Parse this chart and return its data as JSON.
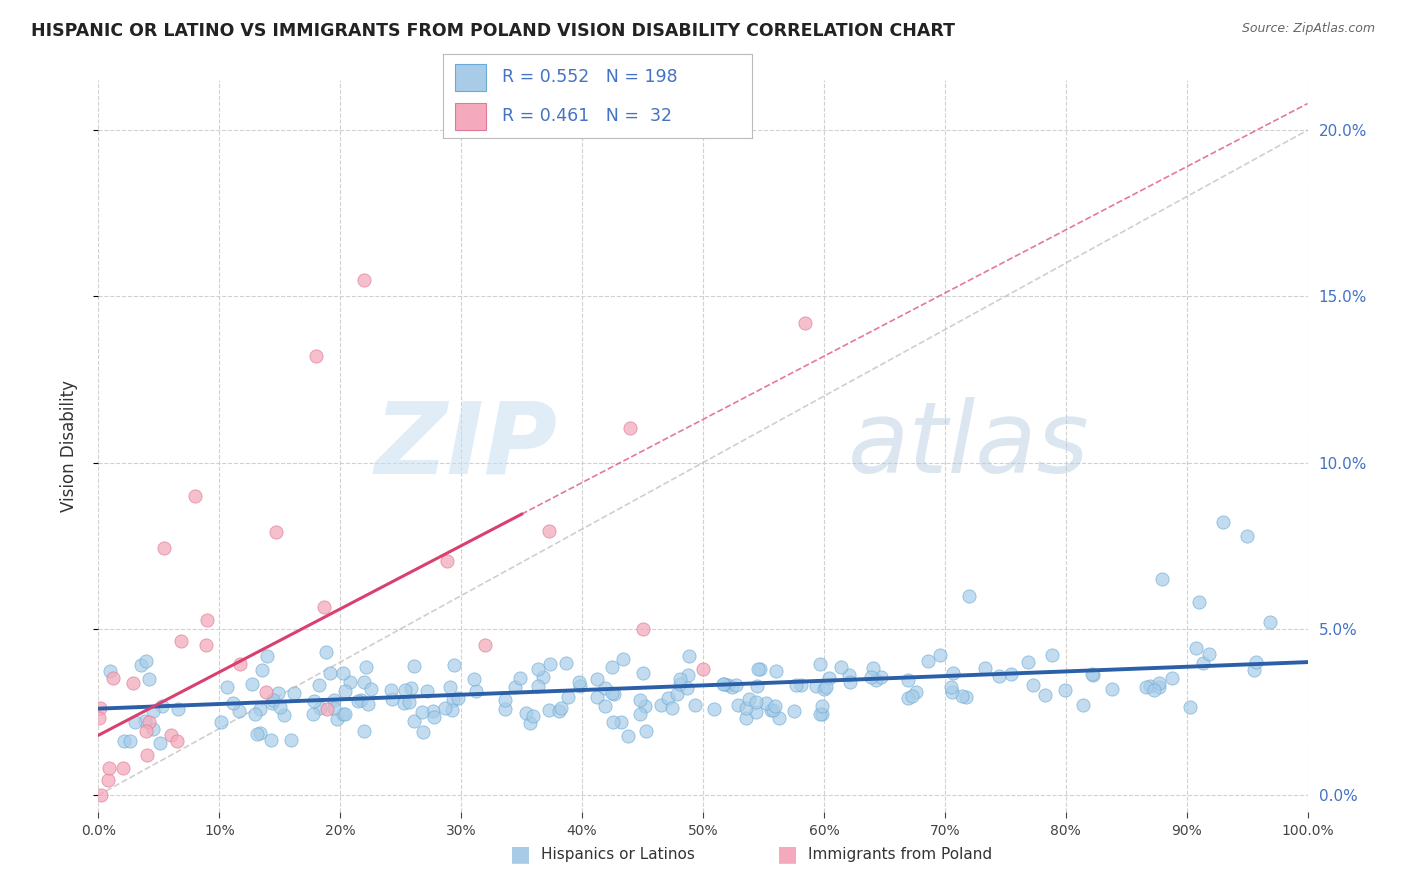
{
  "title": "HISPANIC OR LATINO VS IMMIGRANTS FROM POLAND VISION DISABILITY CORRELATION CHART",
  "source": "Source: ZipAtlas.com",
  "ylabel": "Vision Disability",
  "series1_label": "Hispanics or Latinos",
  "series2_label": "Immigrants from Poland",
  "series1_color": "#A8CCE8",
  "series1_edge": "#6AAAD4",
  "series2_color": "#F4AABC",
  "series2_edge": "#E07898",
  "trend1_color": "#2B5FA8",
  "trend2_color": "#D94070",
  "legend_text_color": "#4472C4",
  "grid_color": "#CCCCCC",
  "diag_color": "#BBBBBB",
  "series1_R": 0.552,
  "series1_N": 198,
  "series2_R": 0.461,
  "series2_N": 32,
  "xlim": [
    0,
    1
  ],
  "ylim": [
    -0.005,
    0.215
  ],
  "yticks": [
    0.0,
    0.05,
    0.1,
    0.15,
    0.2
  ],
  "xtick_positions": [
    0.0,
    0.1,
    0.2,
    0.3,
    0.4,
    0.5,
    0.6,
    0.7,
    0.8,
    0.9,
    1.0
  ],
  "seed": 42,
  "bg_color": "#FFFFFF",
  "watermark_zip": "ZIP",
  "watermark_atlas": "atlas"
}
